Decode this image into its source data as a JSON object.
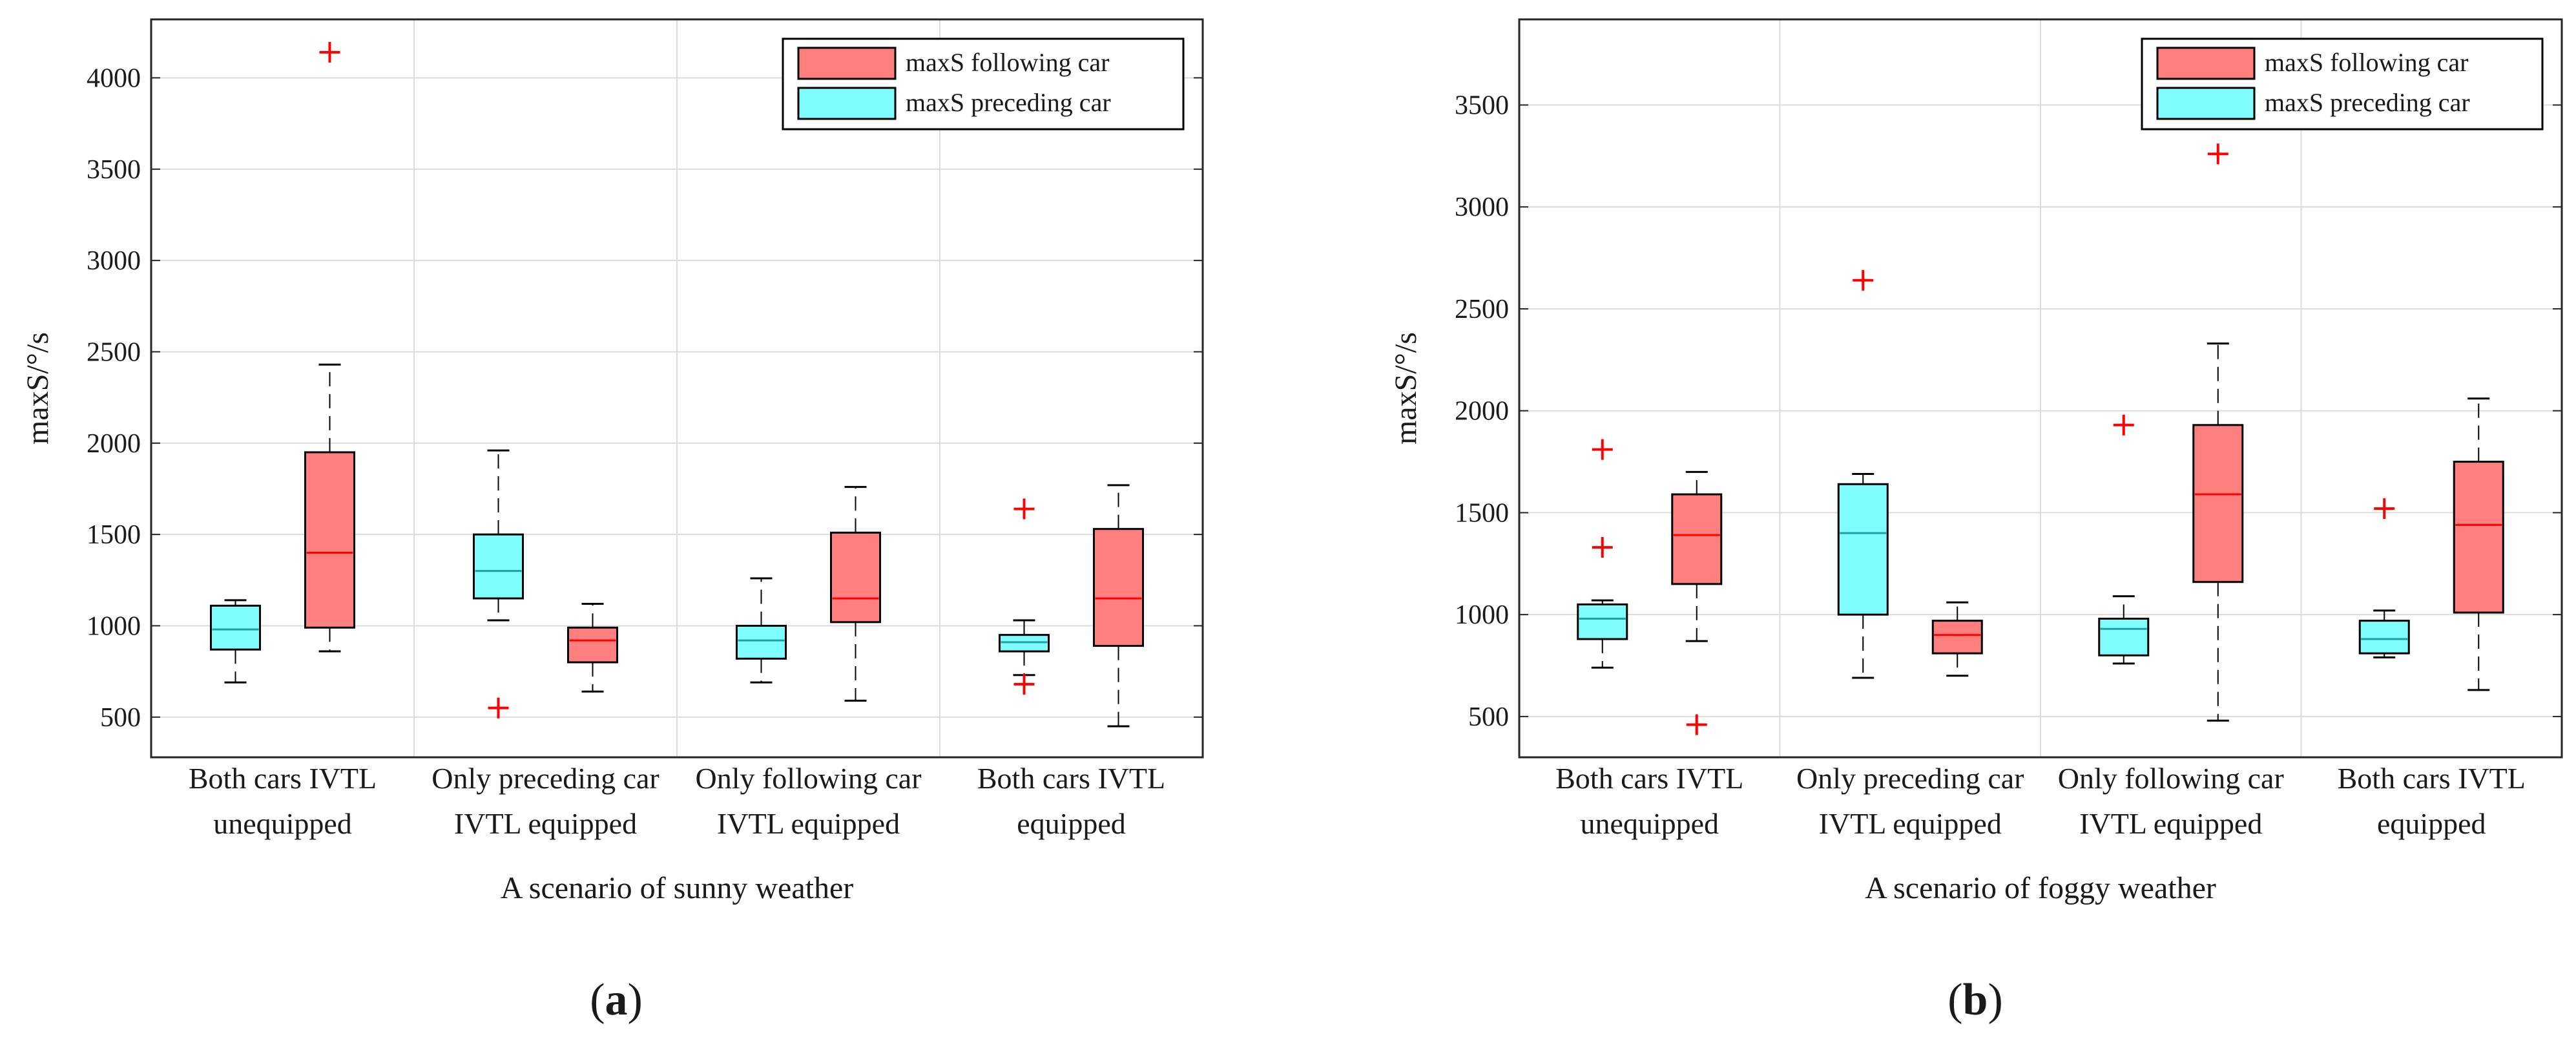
{
  "colors": {
    "following": "#ff7f7f",
    "preceding": "#7ffcff",
    "median_following": "#ff0000",
    "median_preceding": "#20a0a0",
    "outlier": "#ff0000",
    "grid": "#dcdcdc",
    "axis": "#262626"
  },
  "chart_data": [
    {
      "type": "box",
      "panel": "a",
      "panel_label": "(a)",
      "panel_label_letter": "a",
      "title": "",
      "xlabel": "A scenario of sunny weather",
      "ylabel": "maxS/°/s",
      "ylim": [
        280,
        4320
      ],
      "yticks": [
        500,
        1000,
        1500,
        2000,
        2500,
        3000,
        3500,
        4000
      ],
      "grid": true,
      "legend_position": "top-right",
      "categories": [
        [
          "Both cars IVTL",
          "unequipped"
        ],
        [
          "Only preceding car",
          "IVTL equipped"
        ],
        [
          "Only following car",
          "IVTL equipped"
        ],
        [
          "Both cars IVTL",
          "equipped"
        ]
      ],
      "series": [
        {
          "name": "maxS following car",
          "key": "following",
          "boxes": [
            {
              "min": 860,
              "q1": 990,
              "median": 1400,
              "q3": 1950,
              "max": 2430,
              "outliers": [
                4140
              ]
            },
            {
              "min": 640,
              "q1": 800,
              "median": 920,
              "q3": 990,
              "max": 1120,
              "outliers": []
            },
            {
              "min": 590,
              "q1": 1020,
              "median": 1150,
              "q3": 1510,
              "max": 1760,
              "outliers": []
            },
            {
              "min": 450,
              "q1": 890,
              "median": 1150,
              "q3": 1530,
              "max": 1770,
              "outliers": []
            }
          ]
        },
        {
          "name": "maxS preceding car",
          "key": "preceding",
          "boxes": [
            {
              "min": 690,
              "q1": 870,
              "median": 980,
              "q3": 1110,
              "max": 1140,
              "outliers": []
            },
            {
              "min": 1030,
              "q1": 1150,
              "median": 1300,
              "q3": 1500,
              "max": 1960,
              "outliers": [
                550
              ]
            },
            {
              "min": 690,
              "q1": 820,
              "median": 920,
              "q3": 1000,
              "max": 1260,
              "outliers": []
            },
            {
              "min": 730,
              "q1": 860,
              "median": 910,
              "q3": 950,
              "max": 1030,
              "outliers": [
                1640,
                680
              ]
            }
          ]
        }
      ]
    },
    {
      "type": "box",
      "panel": "b",
      "panel_label": "(b)",
      "panel_label_letter": "b",
      "title": "",
      "xlabel": "A scenario of foggy weather",
      "ylabel": "maxS/°/s",
      "ylim": [
        300,
        3920
      ],
      "yticks": [
        500,
        1000,
        1500,
        2000,
        2500,
        3000,
        3500
      ],
      "grid": true,
      "legend_position": "top-right",
      "categories": [
        [
          "Both cars IVTL",
          "unequipped"
        ],
        [
          "Only preceding car",
          "IVTL equipped"
        ],
        [
          "Only following car",
          "IVTL equipped"
        ],
        [
          "Both cars IVTL",
          "equipped"
        ]
      ],
      "series": [
        {
          "name": "maxS following car",
          "key": "following",
          "boxes": [
            {
              "min": 870,
              "q1": 1150,
              "median": 1390,
              "q3": 1590,
              "max": 1700,
              "outliers": [
                460
              ]
            },
            {
              "min": 700,
              "q1": 810,
              "median": 900,
              "q3": 970,
              "max": 1060,
              "outliers": []
            },
            {
              "min": 480,
              "q1": 1160,
              "median": 1590,
              "q3": 1930,
              "max": 2330,
              "outliers": [
                3260
              ]
            },
            {
              "min": 630,
              "q1": 1010,
              "median": 1440,
              "q3": 1750,
              "max": 2060,
              "outliers": []
            }
          ]
        },
        {
          "name": "maxS preceding car",
          "key": "preceding",
          "boxes": [
            {
              "min": 740,
              "q1": 880,
              "median": 980,
              "q3": 1050,
              "max": 1070,
              "outliers": [
                1810,
                1330
              ]
            },
            {
              "min": 690,
              "q1": 1000,
              "median": 1400,
              "q3": 1640,
              "max": 1690,
              "outliers": [
                2640
              ]
            },
            {
              "min": 760,
              "q1": 800,
              "median": 930,
              "q3": 980,
              "max": 1090,
              "outliers": [
                1930
              ]
            },
            {
              "min": 790,
              "q1": 810,
              "median": 880,
              "q3": 970,
              "max": 1020,
              "outliers": [
                1520
              ]
            }
          ]
        }
      ]
    }
  ]
}
